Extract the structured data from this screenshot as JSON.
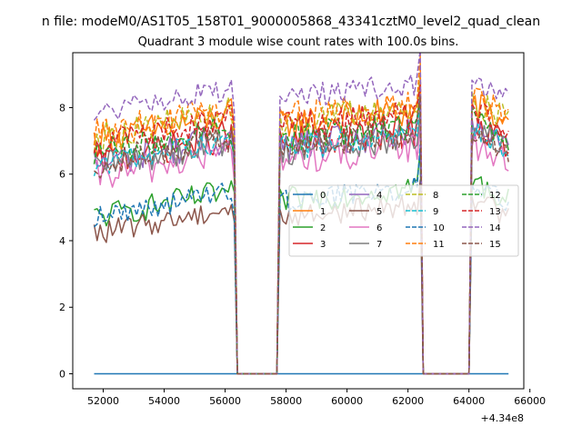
{
  "figure": {
    "suptitle": "n file: modeM0/AS1T05_158T01_9000005868_43341cztM0_level2_quad_clean"
  },
  "chart_data": {
    "type": "line",
    "title": "Quadrant 3 module wise count rates with 100.0s bins.",
    "xlabel": "",
    "ylabel": "",
    "x_offset_label": "+4.34e8",
    "xlim": [
      51000,
      65800
    ],
    "ylim": [
      -0.45,
      9.65
    ],
    "x_ticks": [
      52000,
      54000,
      56000,
      58000,
      60000,
      62000,
      64000,
      66000
    ],
    "x_tick_labels": [
      "52000",
      "54000",
      "56000",
      "58000",
      "60000",
      "62000",
      "64000",
      "66000"
    ],
    "y_ticks": [
      0,
      2,
      4,
      6,
      8
    ],
    "y_tick_labels": [
      "0",
      "2",
      "4",
      "6",
      "8"
    ],
    "grid": false,
    "legend": {
      "placement": "center-right",
      "ncol": 4
    },
    "x_range": [
      51700,
      65300
    ],
    "segments": [
      [
        56300,
        57800
      ],
      [
        62400,
        64100
      ]
    ],
    "series": [
      {
        "name": "0",
        "color": "#1f77b4",
        "dash": "solid",
        "base": 0.0,
        "amp": 0.0
      },
      {
        "name": "1",
        "color": "#ff7f0e",
        "dash": "solid",
        "base": 7.3,
        "amp": 0.5
      },
      {
        "name": "2",
        "color": "#2ca02c",
        "dash": "solid",
        "base": 5.0,
        "amp": 0.4
      },
      {
        "name": "3",
        "color": "#d62728",
        "dash": "solid",
        "base": 6.7,
        "amp": 0.5
      },
      {
        "name": "4",
        "color": "#9467bd",
        "dash": "solid",
        "base": 6.6,
        "amp": 0.5
      },
      {
        "name": "5",
        "color": "#8c564b",
        "dash": "solid",
        "base": 4.5,
        "amp": 0.35
      },
      {
        "name": "6",
        "color": "#e377c2",
        "dash": "solid",
        "base": 6.2,
        "amp": 0.5
      },
      {
        "name": "7",
        "color": "#7f7f7f",
        "dash": "solid",
        "base": 6.5,
        "amp": 0.45
      },
      {
        "name": "8",
        "color": "#bcbd22",
        "dash": "dashed",
        "base": 7.4,
        "amp": 0.45
      },
      {
        "name": "9",
        "color": "#17becf",
        "dash": "dashed",
        "base": 6.6,
        "amp": 0.4
      },
      {
        "name": "10",
        "color": "#1f77b4",
        "dash": "dashed",
        "base": 5.0,
        "amp": 0.35
      },
      {
        "name": "11",
        "color": "#ff7f0e",
        "dash": "dashed",
        "base": 7.5,
        "amp": 0.45
      },
      {
        "name": "12",
        "color": "#2ca02c",
        "dash": "dashed",
        "base": 6.9,
        "amp": 0.45
      },
      {
        "name": "13",
        "color": "#d62728",
        "dash": "dashed",
        "base": 7.2,
        "amp": 0.45
      },
      {
        "name": "14",
        "color": "#9467bd",
        "dash": "dashed",
        "base": 8.1,
        "amp": 0.35
      },
      {
        "name": "15",
        "color": "#8c564b",
        "dash": "dashed",
        "base": 6.6,
        "amp": 0.45
      }
    ]
  }
}
